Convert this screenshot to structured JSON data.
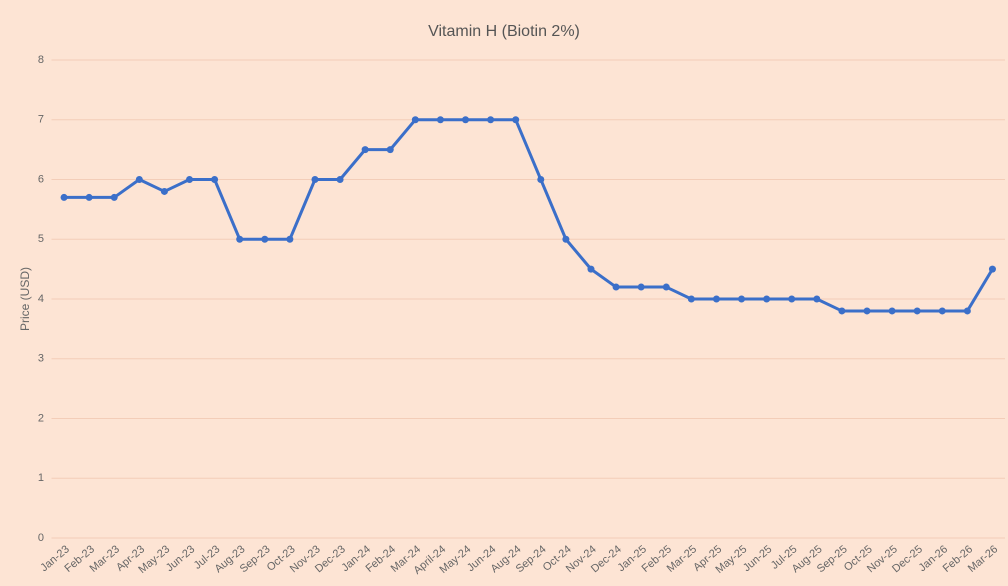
{
  "chart_data": {
    "type": "line",
    "title": "Vitamin H (Biotin 2%)",
    "y_label": "Price (USD)",
    "categories": [
      "Jan-23",
      "Feb-23",
      "Mar-23",
      "Apr-23",
      "May-23",
      "Jun-23",
      "Jul-23",
      "Aug-23",
      "Sep-23",
      "Oct-23",
      "Nov-23",
      "Dec-23",
      "Jan-24",
      "Feb-24",
      "Mar-24",
      "April-24",
      "May-24",
      "Jun-24",
      "Aug-24",
      "Sep-24",
      "Oct-24",
      "Nov-24",
      "Dec-24",
      "Jan-25",
      "Feb-25",
      "Mar-25",
      "Apr-25",
      "May-25",
      "Jun-25",
      "Jul-25",
      "Aug-25",
      "Sep-25",
      "Oct-25",
      "Nov-25",
      "Dec-25",
      "Jan-26",
      "Feb-26",
      "Mar-26"
    ],
    "values": [
      5.7,
      5.7,
      5.7,
      6,
      5.8,
      6,
      6,
      5,
      5,
      5,
      6,
      6,
      6.5,
      6.5,
      7,
      7,
      7,
      7,
      7,
      6,
      5,
      4.5,
      4.2,
      4.2,
      4.2,
      4,
      4,
      4,
      4,
      4,
      4,
      3.8,
      3.8,
      3.8,
      3.8,
      3.8,
      3.8,
      4.5
    ],
    "color": "#3b6fc9",
    "ylim": [
      0,
      8
    ],
    "yticks": [
      0,
      1,
      2,
      3,
      4,
      5,
      6,
      7,
      8
    ],
    "grid": true
  }
}
